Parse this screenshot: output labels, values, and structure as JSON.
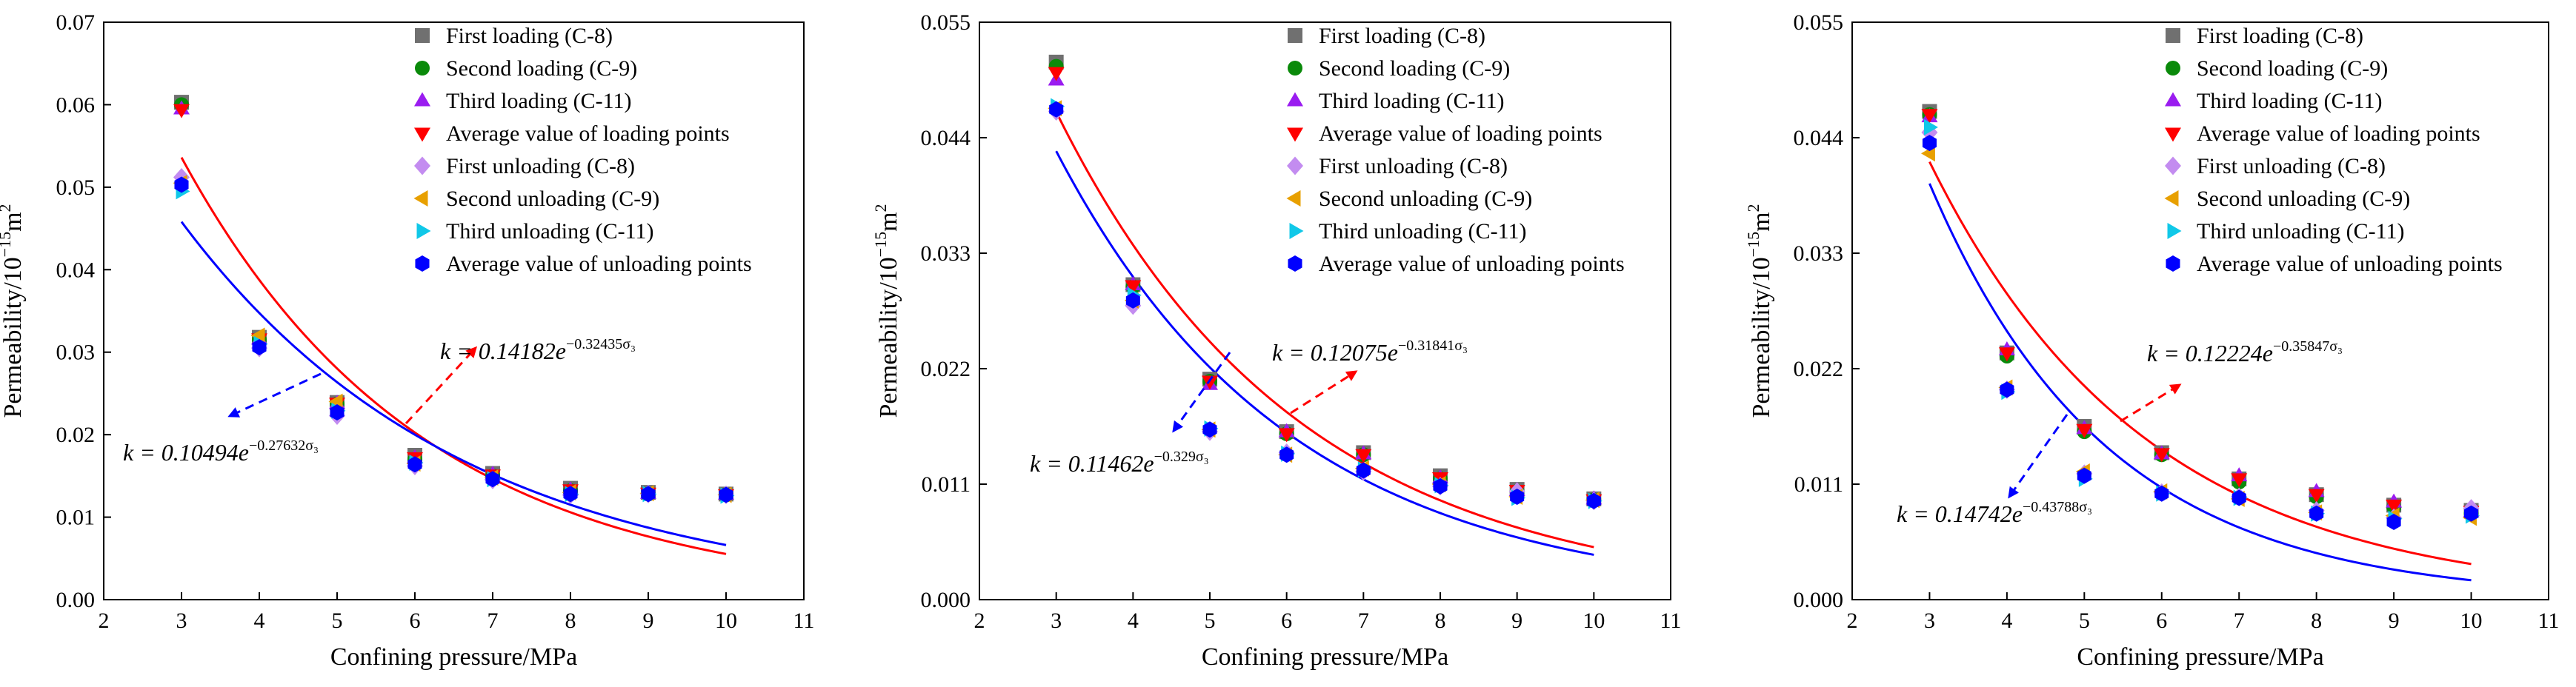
{
  "chart_data": [
    {
      "type": "scatter",
      "xlabel": "Confining pressure/MPa",
      "ylabel_main": "Permeability/10",
      "ylabel_exp": "−15",
      "ylabel_unit": "m",
      "ylabel_unit_exp": "2",
      "xlim": [
        2,
        11
      ],
      "ylim": [
        0,
        0.07
      ],
      "xticks": [
        2,
        3,
        4,
        5,
        6,
        7,
        8,
        9,
        10,
        11
      ],
      "yticks": [
        "0.00",
        "0.01",
        "0.02",
        "0.03",
        "0.04",
        "0.05",
        "0.06",
        "0.07"
      ],
      "x": [
        3,
        4,
        5,
        6,
        7,
        8,
        9,
        10
      ],
      "series": [
        {
          "name": "First loading (C-8)",
          "values": [
            0.0603,
            0.0318,
            0.0239,
            0.0175,
            0.0153,
            0.0135,
            0.013,
            0.0128
          ]
        },
        {
          "name": "Second loading (C-9)",
          "values": [
            0.06,
            0.0315,
            0.0237,
            0.017,
            0.015,
            0.0132,
            0.0128,
            0.0127
          ]
        },
        {
          "name": "Third loading (C-11)",
          "values": [
            0.0595,
            0.0316,
            0.0238,
            0.0172,
            0.0152,
            0.0133,
            0.0129,
            0.0128
          ]
        },
        {
          "name": "Average value of loading points",
          "values": [
            0.0594,
            0.0316,
            0.0238,
            0.0172,
            0.0151,
            0.0133,
            0.0129,
            0.0127
          ]
        },
        {
          "name": "First unloading (C-8)",
          "values": [
            0.0512,
            0.0305,
            0.0223,
            0.0162,
            0.0145,
            0.0127,
            0.0128,
            0.0127
          ]
        },
        {
          "name": "Second unloading  (C-9)",
          "values": [
            0.0505,
            0.032,
            0.024,
            0.0165,
            0.0148,
            0.013,
            0.0129,
            0.0127
          ]
        },
        {
          "name": "Third unloading (C-11)",
          "values": [
            0.0495,
            0.031,
            0.0229,
            0.0166,
            0.0146,
            0.0128,
            0.0128,
            0.0126
          ]
        },
        {
          "name": "Average value of unloading points",
          "values": [
            0.0503,
            0.0306,
            0.0227,
            0.0164,
            0.0146,
            0.0128,
            0.0128,
            0.0127
          ]
        }
      ],
      "fits": [
        {
          "name": "loading fit",
          "color": "#ff0000",
          "a": 0.14182,
          "b": 0.32435
        },
        {
          "name": "unloading fit",
          "color": "#0000ff",
          "a": 0.10494,
          "b": 0.27632
        }
      ],
      "annotations": [
        {
          "prefix": "k = 0.14182e",
          "exponent": "−0.32435σ₃"
        },
        {
          "prefix": "k = 0.10494e",
          "exponent": "−0.27632σ₃"
        }
      ]
    },
    {
      "type": "scatter",
      "xlabel": "Confining pressure/MPa",
      "ylabel_main": "Permeability/10",
      "ylabel_exp": "−15",
      "ylabel_unit": "m",
      "ylabel_unit_exp": "2",
      "xlim": [
        2,
        11
      ],
      "ylim": [
        0,
        0.055
      ],
      "xticks": [
        2,
        3,
        4,
        5,
        6,
        7,
        8,
        9,
        10,
        11
      ],
      "yticks": [
        "0.000",
        "0.011",
        "0.022",
        "0.033",
        "0.044",
        "0.055"
      ],
      "ytick_values": [
        0,
        0.011,
        0.022,
        0.033,
        0.044,
        0.055
      ],
      "x": [
        3,
        4,
        5,
        6,
        7,
        8,
        9,
        10
      ],
      "series": [
        {
          "name": "First loading (C-8)",
          "values": [
            0.0512,
            0.03,
            0.021,
            0.016,
            0.014,
            0.0118,
            0.0105,
            0.0096
          ]
        },
        {
          "name": "Second loading (C-9)",
          "values": [
            0.0508,
            0.0298,
            0.0208,
            0.0158,
            0.0138,
            0.0115,
            0.0103,
            0.0095
          ]
        },
        {
          "name": "Third loading (C-11)",
          "values": [
            0.0495,
            0.03,
            0.0205,
            0.016,
            0.0139,
            0.0116,
            0.0104,
            0.0096
          ]
        },
        {
          "name": "Average value of loading points",
          "values": [
            0.0502,
            0.0299,
            0.0208,
            0.0158,
            0.0138,
            0.0116,
            0.0104,
            0.0095
          ]
        },
        {
          "name": "First unloading (C-8)",
          "values": [
            0.0465,
            0.028,
            0.016,
            0.014,
            0.0122,
            0.0108,
            0.0103,
            0.0094
          ]
        },
        {
          "name": "Second unloading  (C-9)",
          "values": [
            0.0468,
            0.0285,
            0.0162,
            0.0138,
            0.0125,
            0.011,
            0.0098,
            0.0095
          ]
        },
        {
          "name": "Third unloading (C-11)",
          "values": [
            0.047,
            0.029,
            0.0163,
            0.0139,
            0.0124,
            0.0109,
            0.0097,
            0.0094
          ]
        },
        {
          "name": "Average value of unloading points",
          "values": [
            0.0467,
            0.0285,
            0.0162,
            0.0138,
            0.0123,
            0.0108,
            0.0098,
            0.0094
          ]
        }
      ],
      "fits": [
        {
          "name": "loading fit",
          "color": "#ff0000",
          "a": 0.12075,
          "b": 0.31841
        },
        {
          "name": "unloading fit",
          "color": "#0000ff",
          "a": 0.11462,
          "b": 0.329
        }
      ],
      "annotations": [
        {
          "prefix": "k = 0.12075e",
          "exponent": "−0.31841σ₃"
        },
        {
          "prefix": "k = 0.11462e",
          "exponent": "−0.329σ₃"
        }
      ]
    },
    {
      "type": "scatter",
      "xlabel": "Confining pressure/MPa",
      "ylabel_main": "Permeability/10",
      "ylabel_exp": "−15",
      "ylabel_unit": "m",
      "ylabel_unit_exp": "2",
      "xlim": [
        2,
        11
      ],
      "ylim": [
        0,
        0.055
      ],
      "xticks": [
        2,
        3,
        4,
        5,
        6,
        7,
        8,
        9,
        10,
        11
      ],
      "yticks": [
        "0.000",
        "0.011",
        "0.022",
        "0.033",
        "0.044",
        "0.055"
      ],
      "ytick_values": [
        0,
        0.011,
        0.022,
        0.033,
        0.044,
        0.055
      ],
      "x": [
        3,
        4,
        5,
        6,
        7,
        8,
        9,
        10
      ],
      "series": [
        {
          "name": "First loading (C-8)",
          "values": [
            0.0465,
            0.0235,
            0.0165,
            0.014,
            0.0115,
            0.01,
            0.009,
            0.0085
          ]
        },
        {
          "name": "Second loading (C-9)",
          "values": [
            0.0462,
            0.0232,
            0.016,
            0.0138,
            0.0112,
            0.0098,
            0.0088,
            0.0082
          ]
        },
        {
          "name": "Third loading (C-11)",
          "values": [
            0.046,
            0.0238,
            0.0163,
            0.0139,
            0.0118,
            0.0103,
            0.0093,
            0.0084
          ]
        },
        {
          "name": "Average value of loading points",
          "values": [
            0.0462,
            0.0235,
            0.0162,
            0.0139,
            0.0115,
            0.01,
            0.009,
            0.0084
          ]
        },
        {
          "name": "First unloading (C-8)",
          "values": [
            0.0445,
            0.02,
            0.012,
            0.0102,
            0.0098,
            0.0085,
            0.0078,
            0.0087
          ]
        },
        {
          "name": "Second unloading  (C-9)",
          "values": [
            0.0425,
            0.0202,
            0.0122,
            0.0103,
            0.0096,
            0.0083,
            0.008,
            0.0078
          ]
        },
        {
          "name": "Third unloading (C-11)",
          "values": [
            0.045,
            0.0198,
            0.0115,
            0.0101,
            0.0097,
            0.0082,
            0.0077,
            0.008
          ]
        },
        {
          "name": "Average value of unloading points",
          "values": [
            0.0435,
            0.02,
            0.0118,
            0.0101,
            0.0097,
            0.0082,
            0.0074,
            0.0082
          ]
        }
      ],
      "fits": [
        {
          "name": "loading fit",
          "color": "#ff0000",
          "a": 0.12224,
          "b": 0.35847
        },
        {
          "name": "unloading fit",
          "color": "#0000ff",
          "a": 0.14742,
          "b": 0.43788
        }
      ],
      "annotations": [
        {
          "prefix": "k = 0.12224e",
          "exponent": "−0.35847σ₃"
        },
        {
          "prefix": "k = 0.14742e",
          "exponent": "−0.43788σ₃"
        }
      ]
    }
  ],
  "legend_colors": [
    "#707070",
    "#0a8a0a",
    "#9a1cf0",
    "#ff0000",
    "#c38cf0",
    "#e8a000",
    "#10c8e8",
    "#0000ff"
  ],
  "legend_markers": [
    "square",
    "circle",
    "triangle-up",
    "triangle-down",
    "diamond",
    "triangle-left",
    "triangle-right",
    "hexagon"
  ]
}
